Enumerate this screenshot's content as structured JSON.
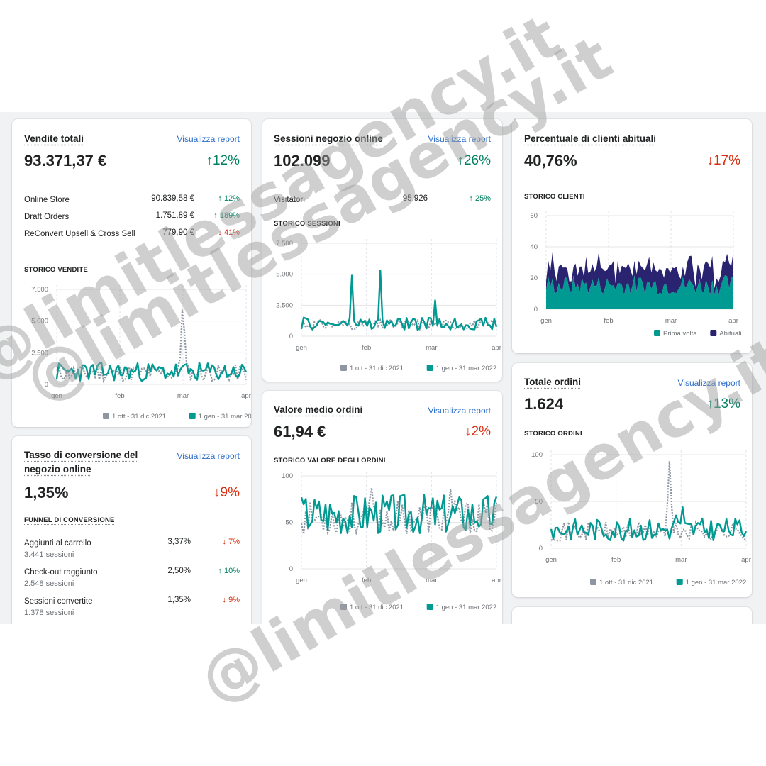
{
  "watermark": "@limitlessagency.it",
  "colors": {
    "teal": "#009a92",
    "gray": "#8e96a3",
    "navy": "#2a2470",
    "up": "#008060",
    "down": "#d72c0d",
    "link": "#2c6ecb"
  },
  "months": [
    "gen",
    "feb",
    "mar",
    "apr"
  ],
  "legend": {
    "prev": "1 ott - 31 dic 2021",
    "curr": "1 gen - 31 mar 2022"
  },
  "view_report": "Visualizza report",
  "vendite": {
    "title": "Vendite totali",
    "value": "93.371,37 €",
    "delta": "12%",
    "rows": [
      {
        "label": "Online Store",
        "value": "90.839,58 €",
        "delta": "12%"
      },
      {
        "label": "Draft Orders",
        "value": "1.751,89 €",
        "delta": "189%"
      },
      {
        "label": "ReConvert Upsell & Cross Sell",
        "value": "779,90 €",
        "delta": "41%"
      }
    ],
    "caption": "STORICO VENDITE"
  },
  "sessioni": {
    "title": "Sessioni negozio online",
    "value": "102.099",
    "delta": "26%",
    "row": {
      "label": "Visitatori",
      "value": "95.926",
      "delta": "25%"
    },
    "caption": "STORICO SESSIONI"
  },
  "clienti": {
    "title": "Percentuale di clienti abituali",
    "value": "40,76%",
    "delta": "17%",
    "caption": "STORICO CLIENTI",
    "legend_first": "Prima volta",
    "legend_returning": "Abituali"
  },
  "conversione": {
    "title": "Tasso di conversione del negozio online",
    "value": "1,35%",
    "delta": "9%",
    "caption": "FUNNEL DI CONVERSIONE",
    "rows": [
      {
        "label": "Aggiunti al carrello",
        "sub": "3.441 sessioni",
        "value": "3,37%",
        "delta": "7%"
      },
      {
        "label": "Check-out raggiunto",
        "sub": "2.548 sessioni",
        "value": "2,50%",
        "delta": "10%"
      },
      {
        "label": "Sessioni convertite",
        "sub": "1.378 sessioni",
        "value": "1,35%",
        "delta": "9%"
      }
    ]
  },
  "valore": {
    "title": "Valore medio ordini",
    "value": "61,94 €",
    "delta": "2%",
    "caption": "STORICO VALORE DEGLI ORDINI"
  },
  "ordini": {
    "title": "Totale ordini",
    "value": "1.624",
    "delta": "13%",
    "caption": "STORICO ORDINI"
  },
  "chart_data": [
    {
      "type": "line",
      "id": "vendite",
      "yticks": [
        "7.500",
        "5.000",
        "2.500",
        "0"
      ],
      "ylim": [
        0,
        7500
      ],
      "prev_peak": 5900,
      "curr_avg": 1000
    },
    {
      "type": "line",
      "id": "sessioni",
      "yticks": [
        "7.500",
        "5.000",
        "2.500",
        "0"
      ],
      "ylim": [
        0,
        7500
      ],
      "curr_peaks": [
        4900,
        5300
      ],
      "curr_avg": 1000
    },
    {
      "type": "area",
      "id": "clienti",
      "yticks": [
        "60",
        "40",
        "20",
        "0"
      ],
      "ylim": [
        0,
        60
      ],
      "series": [
        "Prima volta",
        "Abituali"
      ]
    },
    {
      "type": "line",
      "id": "valore",
      "yticks": [
        "100",
        "50",
        "0"
      ],
      "ylim": [
        0,
        100
      ],
      "curr_avg": 60
    },
    {
      "type": "line",
      "id": "ordini",
      "yticks": [
        "100",
        "50",
        "0"
      ],
      "ylim": [
        0,
        100
      ],
      "prev_peak": 93,
      "curr_avg": 20
    }
  ]
}
